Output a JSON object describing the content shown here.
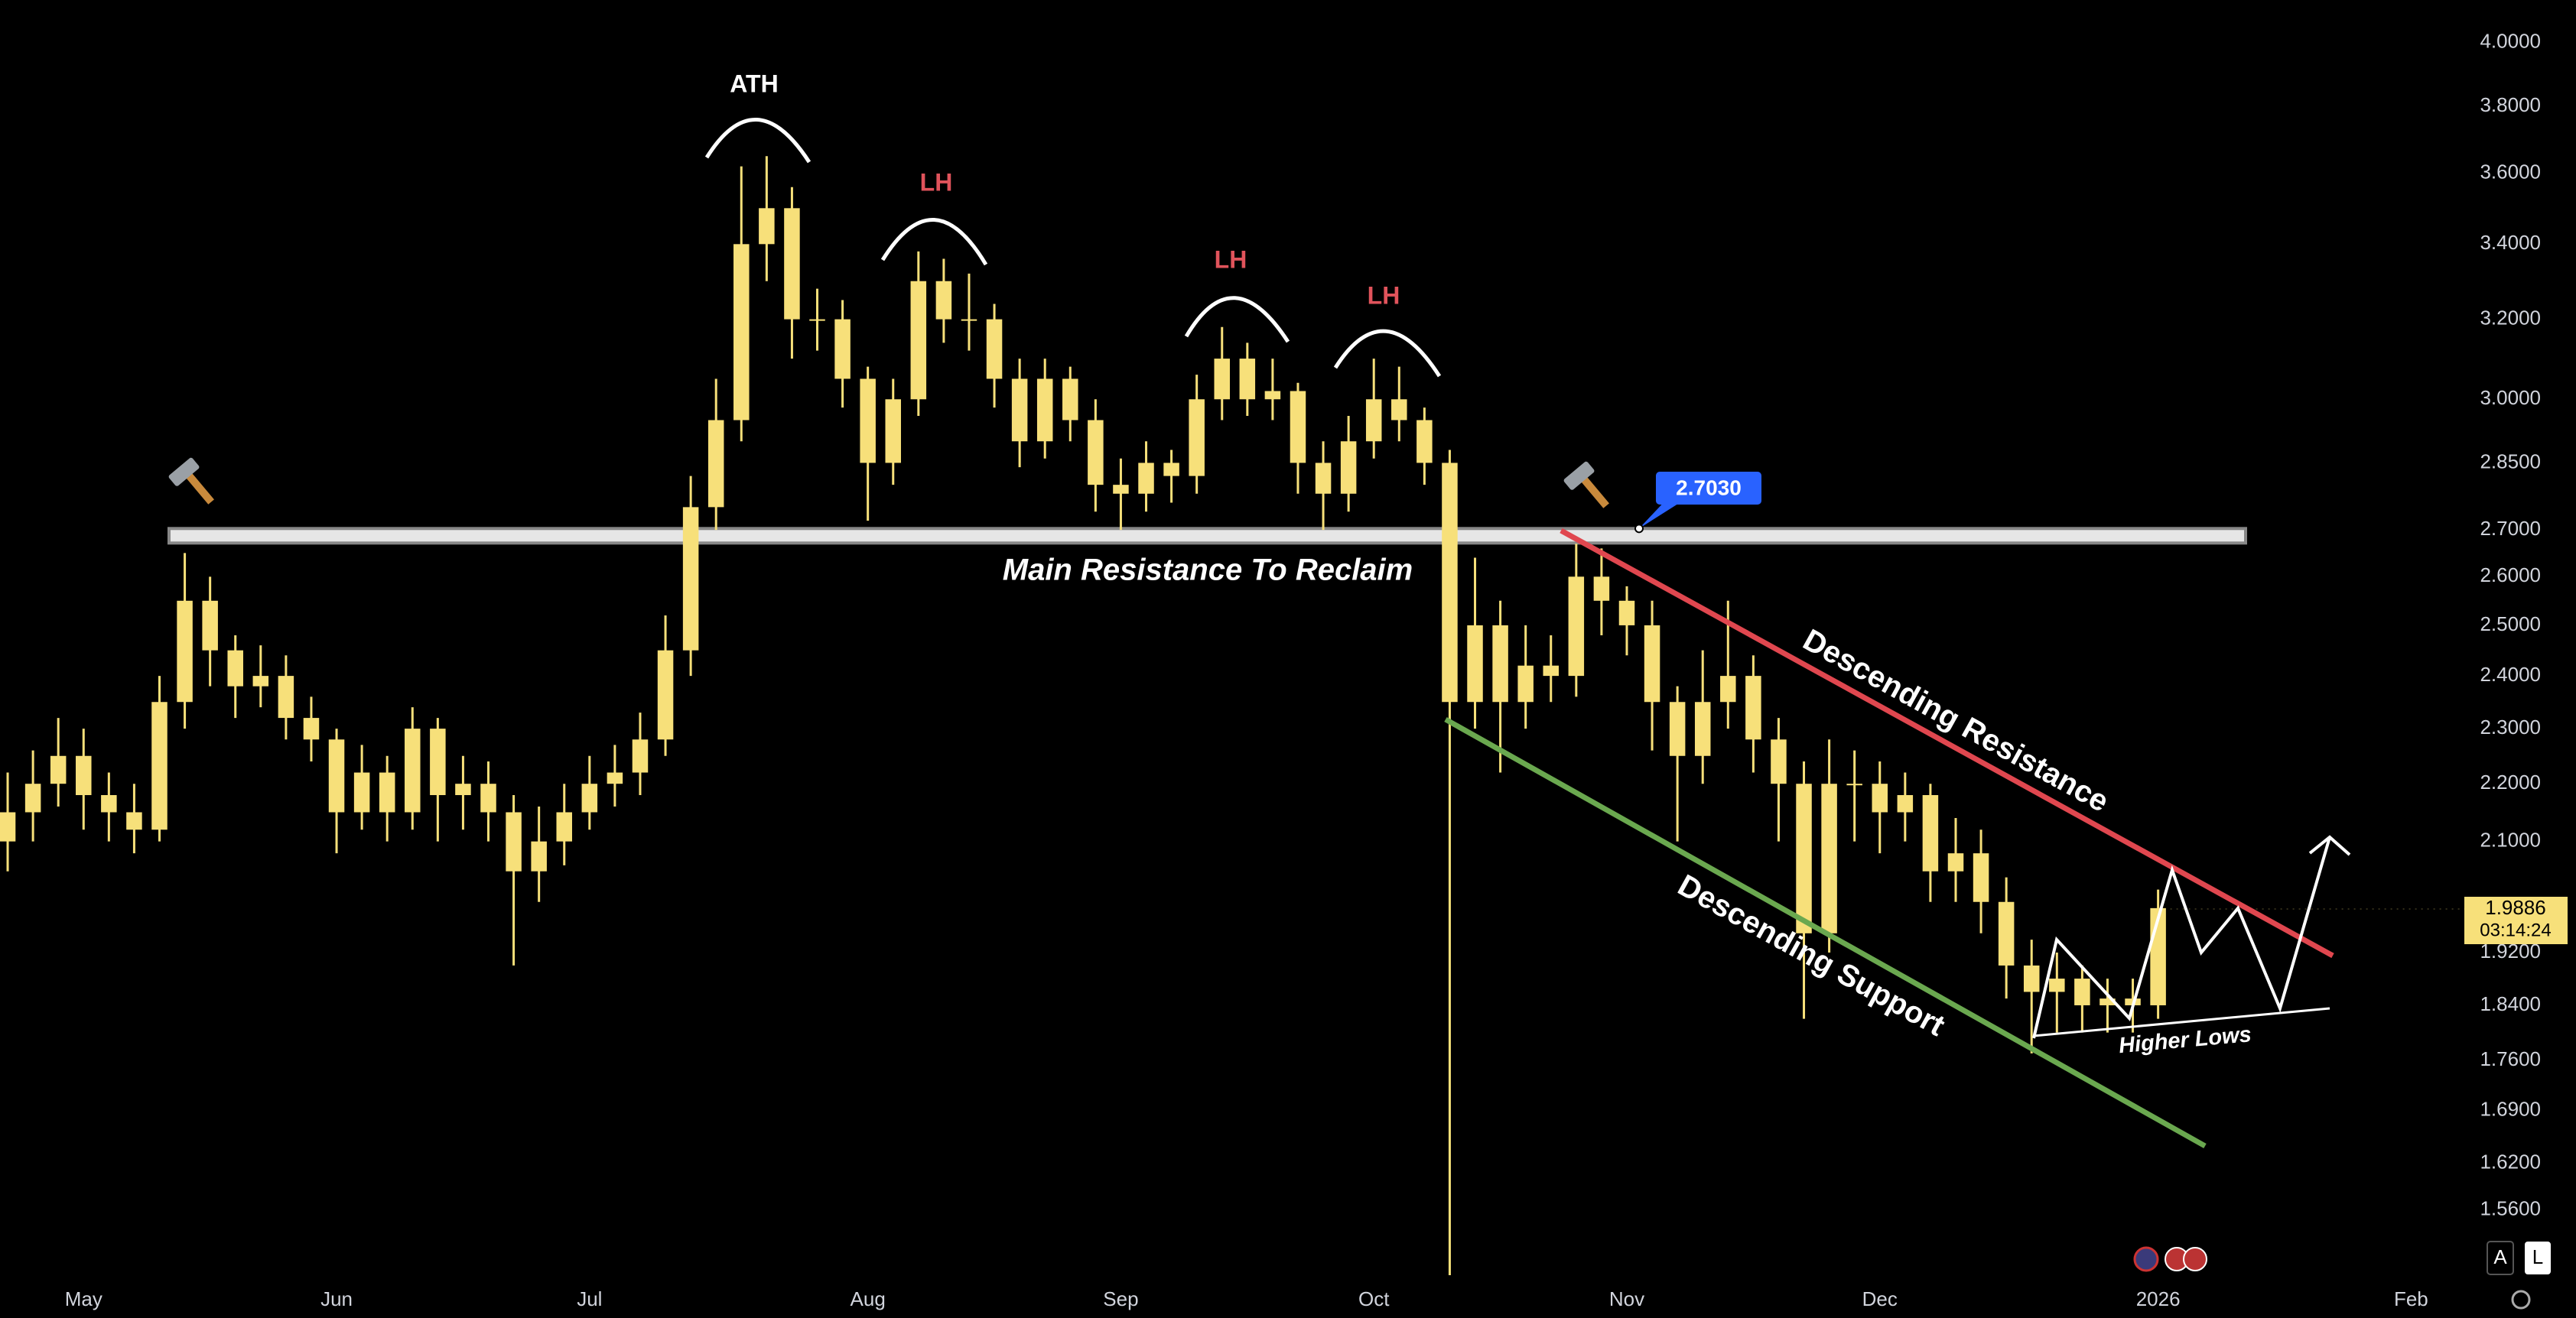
{
  "chart_data": {
    "type": "candlestick",
    "log_scale": true,
    "grid": false,
    "color": "#f7e07a",
    "categories": [
      null,
      null,
      null,
      "May",
      null,
      null,
      null,
      null,
      null,
      null,
      null,
      null,
      null,
      "Jun",
      null,
      null,
      null,
      null,
      null,
      null,
      null,
      null,
      null,
      "Jul",
      null,
      null,
      null,
      null,
      null,
      null,
      null,
      null,
      null,
      null,
      "Aug",
      null,
      null,
      null,
      null,
      null,
      null,
      null,
      null,
      null,
      "Sep",
      null,
      null,
      null,
      null,
      null,
      null,
      null,
      null,
      null,
      "Oct",
      null,
      null,
      null,
      null,
      null,
      null,
      null,
      null,
      null,
      "Nov",
      null,
      null,
      null,
      null,
      null,
      null,
      null,
      null,
      null,
      "Dec",
      null,
      null,
      null,
      null,
      null,
      null,
      null,
      null,
      null,
      null,
      "2026",
      null,
      null,
      null,
      null,
      null,
      null,
      null,
      null,
      null,
      "Feb",
      null
    ],
    "open": [
      2.1,
      2.15,
      2.2,
      2.25,
      2.18,
      2.15,
      2.12,
      2.35,
      2.55,
      2.45,
      2.38,
      2.4,
      2.32,
      2.28,
      2.15,
      2.22,
      2.15,
      2.3,
      2.18,
      2.2,
      2.15,
      2.05,
      2.1,
      2.15,
      2.2,
      2.22,
      2.28,
      2.45,
      2.75,
      2.95,
      3.4,
      3.5,
      3.2,
      3.2,
      3.05,
      2.85,
      3.0,
      3.3,
      3.2,
      3.2,
      3.05,
      2.9,
      3.05,
      2.95,
      2.8,
      2.78,
      2.85,
      2.82,
      3.0,
      3.1,
      3.0,
      3.02,
      2.85,
      2.78,
      2.9,
      3.0,
      2.95,
      2.85,
      2.35,
      2.5,
      2.35,
      2.42,
      2.4,
      2.6,
      2.55,
      2.5,
      2.35,
      2.25,
      2.35,
      2.4,
      2.28,
      2.2,
      1.95,
      2.2,
      2.2,
      2.15,
      2.18,
      2.05,
      2.08,
      2.0,
      1.9,
      1.86,
      1.88,
      1.84,
      1.85,
      1.84,
      null,
      null,
      null,
      null,
      null,
      null,
      null,
      null,
      null,
      null,
      null
    ],
    "high": [
      2.22,
      2.26,
      2.32,
      2.3,
      2.22,
      2.2,
      2.4,
      2.65,
      2.6,
      2.48,
      2.46,
      2.44,
      2.36,
      2.3,
      2.27,
      2.25,
      2.34,
      2.32,
      2.25,
      2.24,
      2.18,
      2.16,
      2.2,
      2.25,
      2.27,
      2.33,
      2.52,
      2.82,
      3.05,
      3.62,
      3.65,
      3.56,
      3.28,
      3.25,
      3.08,
      3.05,
      3.38,
      3.36,
      3.32,
      3.24,
      3.1,
      3.1,
      3.08,
      3.0,
      2.86,
      2.9,
      2.88,
      3.06,
      3.18,
      3.14,
      3.1,
      3.04,
      2.9,
      2.96,
      3.1,
      3.08,
      2.98,
      2.88,
      2.64,
      2.55,
      2.5,
      2.48,
      2.67,
      2.66,
      2.58,
      2.55,
      2.38,
      2.45,
      2.55,
      2.44,
      2.32,
      2.24,
      2.28,
      2.26,
      2.24,
      2.22,
      2.2,
      2.14,
      2.12,
      2.04,
      1.94,
      1.92,
      1.9,
      1.88,
      1.88,
      2.02,
      null,
      null,
      null,
      null,
      null,
      null,
      null,
      null,
      null,
      null,
      null
    ],
    "low": [
      2.05,
      2.1,
      2.16,
      2.12,
      2.1,
      2.08,
      2.1,
      2.3,
      2.38,
      2.32,
      2.34,
      2.28,
      2.24,
      2.08,
      2.12,
      2.1,
      2.12,
      2.1,
      2.12,
      2.1,
      1.9,
      2.0,
      2.06,
      2.12,
      2.16,
      2.18,
      2.25,
      2.4,
      2.7,
      2.9,
      3.3,
      3.1,
      3.12,
      2.98,
      2.72,
      2.8,
      2.96,
      3.14,
      3.12,
      2.98,
      2.84,
      2.86,
      2.9,
      2.74,
      2.7,
      2.74,
      2.76,
      2.78,
      2.95,
      2.96,
      2.95,
      2.78,
      2.7,
      2.74,
      2.86,
      2.9,
      2.8,
      1.48,
      2.3,
      2.22,
      2.3,
      2.35,
      2.36,
      2.48,
      2.44,
      2.26,
      2.1,
      2.2,
      2.3,
      2.22,
      2.1,
      1.82,
      1.92,
      2.1,
      2.08,
      2.1,
      2.0,
      2.0,
      1.95,
      1.85,
      1.77,
      1.8,
      1.8,
      1.8,
      1.8,
      1.82,
      null,
      null,
      null,
      null,
      null,
      null,
      null,
      null,
      null,
      null,
      null
    ],
    "close": [
      2.15,
      2.2,
      2.25,
      2.18,
      2.15,
      2.12,
      2.35,
      2.55,
      2.45,
      2.38,
      2.4,
      2.32,
      2.28,
      2.15,
      2.22,
      2.15,
      2.3,
      2.18,
      2.2,
      2.15,
      2.05,
      2.1,
      2.15,
      2.2,
      2.22,
      2.28,
      2.45,
      2.75,
      2.95,
      3.4,
      3.5,
      3.2,
      3.2,
      3.05,
      2.85,
      3.0,
      3.3,
      3.2,
      3.2,
      3.05,
      2.9,
      3.05,
      2.95,
      2.8,
      2.78,
      2.85,
      2.82,
      3.0,
      3.1,
      3.0,
      3.02,
      2.85,
      2.78,
      2.9,
      3.0,
      2.95,
      2.85,
      2.35,
      2.5,
      2.35,
      2.42,
      2.4,
      2.6,
      2.55,
      2.5,
      2.35,
      2.25,
      2.35,
      2.4,
      2.28,
      2.2,
      1.95,
      2.2,
      2.2,
      2.15,
      2.18,
      2.05,
      2.08,
      2.0,
      1.9,
      1.86,
      1.88,
      1.84,
      1.85,
      1.84,
      1.99,
      null,
      null,
      null,
      null,
      null,
      null,
      null,
      null,
      null,
      null,
      null
    ],
    "ylim": [
      1.47,
      4.14
    ],
    "yticks": [
      {
        "value": 4.0,
        "label": "4.0000"
      },
      {
        "value": 3.8,
        "label": "3.8000"
      },
      {
        "value": 3.6,
        "label": "3.6000"
      },
      {
        "value": 3.4,
        "label": "3.4000"
      },
      {
        "value": 3.2,
        "label": "3.2000"
      },
      {
        "value": 3.0,
        "label": "3.0000"
      },
      {
        "value": 2.85,
        "label": "2.8500"
      },
      {
        "value": 2.7,
        "label": "2.7000"
      },
      {
        "value": 2.6,
        "label": "2.6000"
      },
      {
        "value": 2.5,
        "label": "2.5000"
      },
      {
        "value": 2.4,
        "label": "2.4000"
      },
      {
        "value": 2.3,
        "label": "2.3000"
      },
      {
        "value": 2.2,
        "label": "2.2000"
      },
      {
        "value": 2.1,
        "label": "2.1000"
      },
      {
        "value": 1.92,
        "label": "1.9200"
      },
      {
        "value": 1.84,
        "label": "1.8400"
      },
      {
        "value": 1.76,
        "label": "1.7600"
      },
      {
        "value": 1.69,
        "label": "1.6900"
      },
      {
        "value": 1.62,
        "label": "1.6200"
      },
      {
        "value": 1.56,
        "label": "1.5600"
      }
    ],
    "last_price": 1.9886,
    "countdown": "03:14:24",
    "resistance_level": {
      "value": 2.703,
      "label": "2.7030"
    },
    "peak_labels": [
      "ATH",
      "LH",
      "LH",
      "LH"
    ],
    "resistance_label": "Main Resistance To Reclaim",
    "channel_labels": [
      "Descending Resistance",
      "Descending Support"
    ],
    "higher_lows_label": "Higher Lows",
    "toolbar": [
      "A",
      "L"
    ]
  }
}
